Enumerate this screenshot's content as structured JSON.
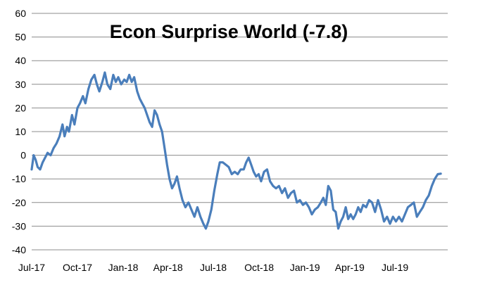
{
  "chart_data": {
    "type": "line",
    "title": "Econ Surprise World (-7.8)",
    "xlabel": "",
    "ylabel": "",
    "ylim": [
      -40,
      60
    ],
    "yticks": [
      -40,
      -30,
      -20,
      -10,
      0,
      10,
      20,
      30,
      40,
      50,
      60
    ],
    "xlim": [
      "2017-07-01",
      "2019-10-15"
    ],
    "xticks": [
      {
        "date": "2017-07-01",
        "label": "Jul-17"
      },
      {
        "date": "2017-10-01",
        "label": "Oct-17"
      },
      {
        "date": "2018-01-01",
        "label": "Jan-18"
      },
      {
        "date": "2018-04-01",
        "label": "Apr-18"
      },
      {
        "date": "2018-07-01",
        "label": "Jul-18"
      },
      {
        "date": "2018-10-01",
        "label": "Oct-18"
      },
      {
        "date": "2019-01-01",
        "label": "Jan-19"
      },
      {
        "date": "2019-04-01",
        "label": "Apr-19"
      },
      {
        "date": "2019-07-01",
        "label": "Jul-19"
      }
    ],
    "grid": true,
    "line_color": "#4a7ebb",
    "series": [
      {
        "points": [
          [
            "2017-07-01",
            -6
          ],
          [
            "2017-07-05",
            0
          ],
          [
            "2017-07-09",
            -2
          ],
          [
            "2017-07-13",
            -5
          ],
          [
            "2017-07-18",
            -6
          ],
          [
            "2017-07-23",
            -3
          ],
          [
            "2017-07-28",
            -1
          ],
          [
            "2017-08-02",
            1
          ],
          [
            "2017-08-08",
            0
          ],
          [
            "2017-08-14",
            3
          ],
          [
            "2017-08-20",
            5
          ],
          [
            "2017-08-26",
            8
          ],
          [
            "2017-09-01",
            13
          ],
          [
            "2017-09-05",
            8
          ],
          [
            "2017-09-10",
            12
          ],
          [
            "2017-09-14",
            10
          ],
          [
            "2017-09-20",
            17
          ],
          [
            "2017-09-25",
            13
          ],
          [
            "2017-10-01",
            20
          ],
          [
            "2017-10-06",
            22
          ],
          [
            "2017-10-12",
            25
          ],
          [
            "2017-10-17",
            22
          ],
          [
            "2017-10-23",
            28
          ],
          [
            "2017-10-29",
            32
          ],
          [
            "2017-11-04",
            34
          ],
          [
            "2017-11-09",
            30
          ],
          [
            "2017-11-14",
            27
          ],
          [
            "2017-11-20",
            31
          ],
          [
            "2017-11-25",
            35
          ],
          [
            "2017-11-30",
            30
          ],
          [
            "2017-12-06",
            28
          ],
          [
            "2017-12-12",
            34
          ],
          [
            "2017-12-17",
            31
          ],
          [
            "2017-12-22",
            33
          ],
          [
            "2017-12-28",
            30
          ],
          [
            "2018-01-03",
            32
          ],
          [
            "2018-01-08",
            31
          ],
          [
            "2018-01-13",
            34
          ],
          [
            "2018-01-18",
            31
          ],
          [
            "2018-01-23",
            33
          ],
          [
            "2018-01-29",
            27
          ],
          [
            "2018-02-03",
            24
          ],
          [
            "2018-02-08",
            22
          ],
          [
            "2018-02-13",
            20
          ],
          [
            "2018-02-18",
            17
          ],
          [
            "2018-02-23",
            14
          ],
          [
            "2018-02-28",
            12
          ],
          [
            "2018-03-05",
            19
          ],
          [
            "2018-03-10",
            17
          ],
          [
            "2018-03-15",
            13
          ],
          [
            "2018-03-20",
            10
          ],
          [
            "2018-03-25",
            3
          ],
          [
            "2018-03-30",
            -4
          ],
          [
            "2018-04-04",
            -10
          ],
          [
            "2018-04-09",
            -14
          ],
          [
            "2018-04-14",
            -12
          ],
          [
            "2018-04-19",
            -9
          ],
          [
            "2018-04-24",
            -14
          ],
          [
            "2018-04-30",
            -19
          ],
          [
            "2018-05-06",
            -22
          ],
          [
            "2018-05-12",
            -20
          ],
          [
            "2018-05-18",
            -23
          ],
          [
            "2018-05-24",
            -26
          ],
          [
            "2018-05-30",
            -22
          ],
          [
            "2018-06-05",
            -26
          ],
          [
            "2018-06-11",
            -29
          ],
          [
            "2018-06-16",
            -31
          ],
          [
            "2018-06-21",
            -28
          ],
          [
            "2018-06-27",
            -23
          ],
          [
            "2018-07-03",
            -15
          ],
          [
            "2018-07-09",
            -8
          ],
          [
            "2018-07-14",
            -3
          ],
          [
            "2018-07-20",
            -3
          ],
          [
            "2018-07-26",
            -4
          ],
          [
            "2018-08-01",
            -5
          ],
          [
            "2018-08-07",
            -8
          ],
          [
            "2018-08-13",
            -7
          ],
          [
            "2018-08-19",
            -8
          ],
          [
            "2018-08-25",
            -6
          ],
          [
            "2018-08-31",
            -6
          ],
          [
            "2018-09-05",
            -3
          ],
          [
            "2018-09-10",
            -1
          ],
          [
            "2018-09-15",
            -4
          ],
          [
            "2018-09-20",
            -7
          ],
          [
            "2018-09-25",
            -9
          ],
          [
            "2018-09-30",
            -8
          ],
          [
            "2018-10-05",
            -11
          ],
          [
            "2018-10-11",
            -7
          ],
          [
            "2018-10-17",
            -6
          ],
          [
            "2018-10-23",
            -11
          ],
          [
            "2018-10-29",
            -13
          ],
          [
            "2018-11-04",
            -14
          ],
          [
            "2018-11-10",
            -13
          ],
          [
            "2018-11-16",
            -16
          ],
          [
            "2018-11-22",
            -14
          ],
          [
            "2018-11-28",
            -18
          ],
          [
            "2018-12-04",
            -16
          ],
          [
            "2018-12-10",
            -15
          ],
          [
            "2018-12-16",
            -20
          ],
          [
            "2018-12-22",
            -19
          ],
          [
            "2018-12-28",
            -21
          ],
          [
            "2019-01-03",
            -20
          ],
          [
            "2019-01-09",
            -22
          ],
          [
            "2019-01-15",
            -25
          ],
          [
            "2019-01-21",
            -23
          ],
          [
            "2019-01-27",
            -22
          ],
          [
            "2019-02-02",
            -20
          ],
          [
            "2019-02-07",
            -18
          ],
          [
            "2019-02-12",
            -21
          ],
          [
            "2019-02-17",
            -13
          ],
          [
            "2019-02-22",
            -15
          ],
          [
            "2019-02-27",
            -23
          ],
          [
            "2019-03-04",
            -24
          ],
          [
            "2019-03-09",
            -31
          ],
          [
            "2019-03-14",
            -28
          ],
          [
            "2019-03-19",
            -26
          ],
          [
            "2019-03-24",
            -22
          ],
          [
            "2019-03-29",
            -27
          ],
          [
            "2019-04-03",
            -25
          ],
          [
            "2019-04-08",
            -27
          ],
          [
            "2019-04-13",
            -25
          ],
          [
            "2019-04-18",
            -22
          ],
          [
            "2019-04-23",
            -24
          ],
          [
            "2019-04-28",
            -21
          ],
          [
            "2019-05-04",
            -22
          ],
          [
            "2019-05-10",
            -19
          ],
          [
            "2019-05-16",
            -20
          ],
          [
            "2019-05-22",
            -24
          ],
          [
            "2019-05-28",
            -19
          ],
          [
            "2019-06-03",
            -23
          ],
          [
            "2019-06-09",
            -28
          ],
          [
            "2019-06-15",
            -26
          ],
          [
            "2019-06-21",
            -29
          ],
          [
            "2019-06-27",
            -26
          ],
          [
            "2019-07-03",
            -28
          ],
          [
            "2019-07-09",
            -26
          ],
          [
            "2019-07-15",
            -28
          ],
          [
            "2019-07-21",
            -25
          ],
          [
            "2019-07-27",
            -22
          ],
          [
            "2019-08-02",
            -21
          ],
          [
            "2019-08-08",
            -20
          ],
          [
            "2019-08-14",
            -26
          ],
          [
            "2019-08-20",
            -24
          ],
          [
            "2019-08-26",
            -22
          ],
          [
            "2019-09-01",
            -19
          ],
          [
            "2019-09-07",
            -17
          ],
          [
            "2019-09-13",
            -13
          ],
          [
            "2019-09-19",
            -10
          ],
          [
            "2019-09-25",
            -8
          ],
          [
            "2019-10-01",
            -7.8
          ]
        ]
      }
    ]
  }
}
